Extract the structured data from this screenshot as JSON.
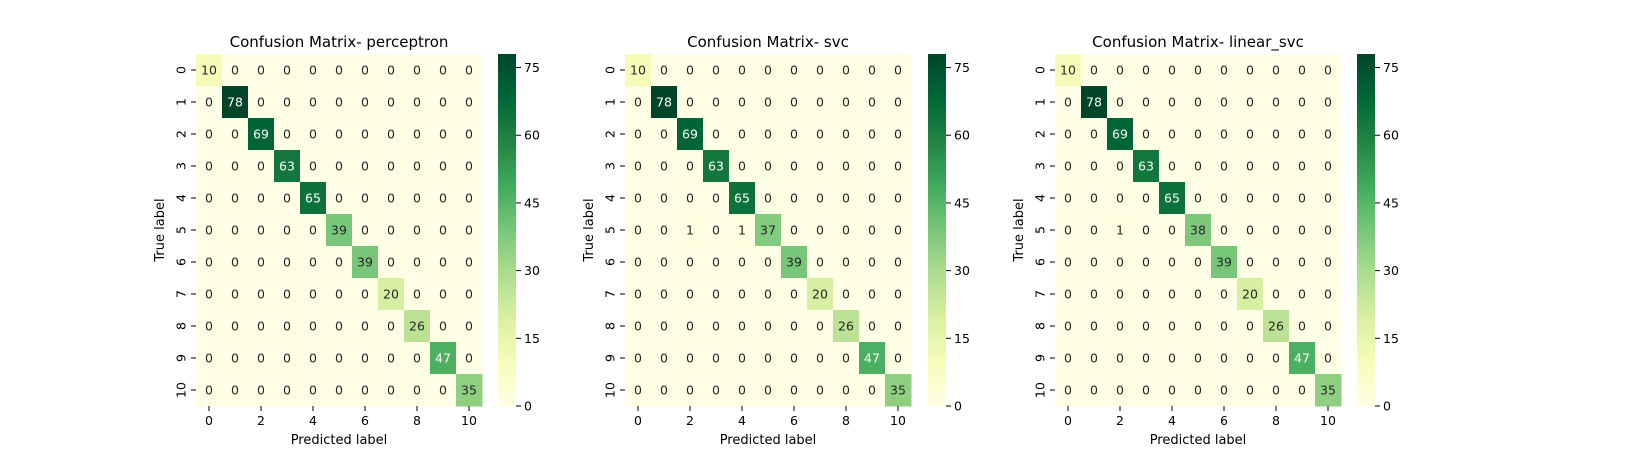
{
  "chart_data": [
    {
      "type": "heatmap",
      "title": "Confusion Matrix- perceptron",
      "xlabel": "Predicted label",
      "ylabel": "True label",
      "x_ticks": [
        "0",
        "2",
        "4",
        "6",
        "8",
        "10"
      ],
      "y_ticks": [
        "0",
        "1",
        "2",
        "3",
        "4",
        "5",
        "6",
        "7",
        "8",
        "9",
        "10"
      ],
      "colorbar_ticks": [
        "0",
        "15",
        "30",
        "45",
        "60",
        "75"
      ],
      "vmin": 0,
      "vmax": 78,
      "matrix": [
        [
          10,
          0,
          0,
          0,
          0,
          0,
          0,
          0,
          0,
          0,
          0
        ],
        [
          0,
          78,
          0,
          0,
          0,
          0,
          0,
          0,
          0,
          0,
          0
        ],
        [
          0,
          0,
          69,
          0,
          0,
          0,
          0,
          0,
          0,
          0,
          0
        ],
        [
          0,
          0,
          0,
          63,
          0,
          0,
          0,
          0,
          0,
          0,
          0
        ],
        [
          0,
          0,
          0,
          0,
          65,
          0,
          0,
          0,
          0,
          0,
          0
        ],
        [
          0,
          0,
          0,
          0,
          0,
          39,
          0,
          0,
          0,
          0,
          0
        ],
        [
          0,
          0,
          0,
          0,
          0,
          0,
          39,
          0,
          0,
          0,
          0
        ],
        [
          0,
          0,
          0,
          0,
          0,
          0,
          0,
          20,
          0,
          0,
          0
        ],
        [
          0,
          0,
          0,
          0,
          0,
          0,
          0,
          0,
          26,
          0,
          0
        ],
        [
          0,
          0,
          0,
          0,
          0,
          0,
          0,
          0,
          0,
          47,
          0
        ],
        [
          0,
          0,
          0,
          0,
          0,
          0,
          0,
          0,
          0,
          0,
          35
        ]
      ]
    },
    {
      "type": "heatmap",
      "title": "Confusion Matrix- svc",
      "xlabel": "Predicted label",
      "ylabel": "True label",
      "x_ticks": [
        "0",
        "2",
        "4",
        "6",
        "8",
        "10"
      ],
      "y_ticks": [
        "0",
        "1",
        "2",
        "3",
        "4",
        "5",
        "6",
        "7",
        "8",
        "9",
        "10"
      ],
      "colorbar_ticks": [
        "0",
        "15",
        "30",
        "45",
        "60",
        "75"
      ],
      "vmin": 0,
      "vmax": 78,
      "matrix": [
        [
          10,
          0,
          0,
          0,
          0,
          0,
          0,
          0,
          0,
          0,
          0
        ],
        [
          0,
          78,
          0,
          0,
          0,
          0,
          0,
          0,
          0,
          0,
          0
        ],
        [
          0,
          0,
          69,
          0,
          0,
          0,
          0,
          0,
          0,
          0,
          0
        ],
        [
          0,
          0,
          0,
          63,
          0,
          0,
          0,
          0,
          0,
          0,
          0
        ],
        [
          0,
          0,
          0,
          0,
          65,
          0,
          0,
          0,
          0,
          0,
          0
        ],
        [
          0,
          0,
          1,
          0,
          1,
          37,
          0,
          0,
          0,
          0,
          0
        ],
        [
          0,
          0,
          0,
          0,
          0,
          0,
          39,
          0,
          0,
          0,
          0
        ],
        [
          0,
          0,
          0,
          0,
          0,
          0,
          0,
          20,
          0,
          0,
          0
        ],
        [
          0,
          0,
          0,
          0,
          0,
          0,
          0,
          0,
          26,
          0,
          0
        ],
        [
          0,
          0,
          0,
          0,
          0,
          0,
          0,
          0,
          0,
          47,
          0
        ],
        [
          0,
          0,
          0,
          0,
          0,
          0,
          0,
          0,
          0,
          0,
          35
        ]
      ]
    },
    {
      "type": "heatmap",
      "title": "Confusion Matrix- linear_svc",
      "xlabel": "Predicted label",
      "ylabel": "True label",
      "x_ticks": [
        "0",
        "2",
        "4",
        "6",
        "8",
        "10"
      ],
      "y_ticks": [
        "0",
        "1",
        "2",
        "3",
        "4",
        "5",
        "6",
        "7",
        "8",
        "9",
        "10"
      ],
      "colorbar_ticks": [
        "0",
        "15",
        "30",
        "45",
        "60",
        "75"
      ],
      "vmin": 0,
      "vmax": 78,
      "matrix": [
        [
          10,
          0,
          0,
          0,
          0,
          0,
          0,
          0,
          0,
          0,
          0
        ],
        [
          0,
          78,
          0,
          0,
          0,
          0,
          0,
          0,
          0,
          0,
          0
        ],
        [
          0,
          0,
          69,
          0,
          0,
          0,
          0,
          0,
          0,
          0,
          0
        ],
        [
          0,
          0,
          0,
          63,
          0,
          0,
          0,
          0,
          0,
          0,
          0
        ],
        [
          0,
          0,
          0,
          0,
          65,
          0,
          0,
          0,
          0,
          0,
          0
        ],
        [
          0,
          0,
          1,
          0,
          0,
          38,
          0,
          0,
          0,
          0,
          0
        ],
        [
          0,
          0,
          0,
          0,
          0,
          0,
          39,
          0,
          0,
          0,
          0
        ],
        [
          0,
          0,
          0,
          0,
          0,
          0,
          0,
          20,
          0,
          0,
          0
        ],
        [
          0,
          0,
          0,
          0,
          0,
          0,
          0,
          0,
          26,
          0,
          0
        ],
        [
          0,
          0,
          0,
          0,
          0,
          0,
          0,
          0,
          0,
          47,
          0
        ],
        [
          0,
          0,
          0,
          0,
          0,
          0,
          0,
          0,
          0,
          0,
          35
        ]
      ]
    }
  ],
  "colormap": [
    "#ffffe5",
    "#f7fcb9",
    "#d9f0a3",
    "#addd8e",
    "#78c679",
    "#41ab5d",
    "#238443",
    "#006837",
    "#004529"
  ]
}
